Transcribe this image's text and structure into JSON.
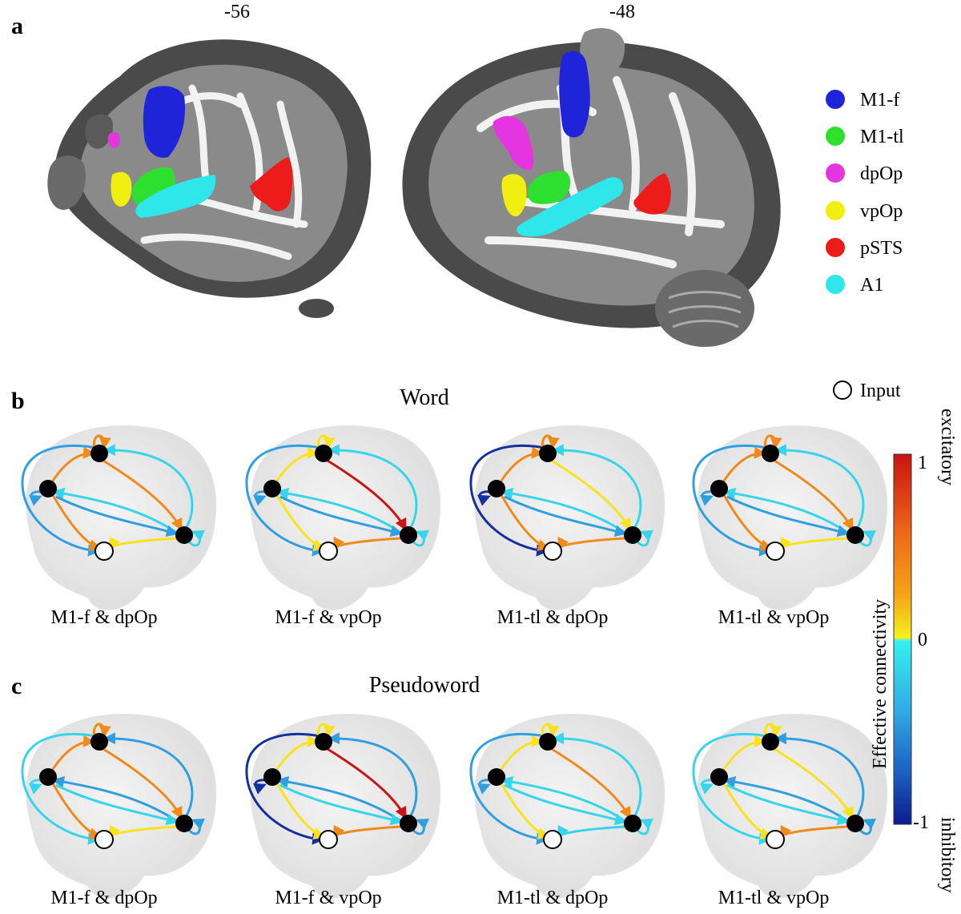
{
  "panels": {
    "a": {
      "letter": "a",
      "slices": [
        "-56",
        "-48"
      ]
    },
    "b": {
      "letter": "b",
      "title": "Word"
    },
    "c": {
      "letter": "c",
      "title": "Pseudoword"
    }
  },
  "legend": {
    "regions": [
      {
        "label": "M1-f",
        "color": "#1f24d9"
      },
      {
        "label": "M1-tl",
        "color": "#2ee02e"
      },
      {
        "label": "dpOp",
        "color": "#e535e0"
      },
      {
        "label": "vpOp",
        "color": "#f0ef10"
      },
      {
        "label": "pSTS",
        "color": "#ee1b1b"
      },
      {
        "label": "A1",
        "color": "#2fe6ea"
      }
    ],
    "input_label": "Input"
  },
  "conditions": [
    "M1-f & dpOp",
    "M1-f & vpOp",
    "M1-tl & dpOp",
    "M1-tl & vpOp"
  ],
  "colorbar": {
    "title": "Effective connectivity",
    "top_label": "excitatory",
    "bottom_label": "inhibitory",
    "max_tick": "1",
    "mid_tick": "0",
    "min_tick": "-1"
  },
  "colors": {
    "excitatory_high": "#c81414",
    "excitatory_mid": "#f08a18",
    "excitatory_low": "#f7e31c",
    "inhibitory_low": "#35d6ec",
    "inhibitory_mid": "#2f9fe0",
    "inhibitory_high": "#15309e",
    "node_fill": "#000000",
    "input_fill": "#ffffff"
  }
}
